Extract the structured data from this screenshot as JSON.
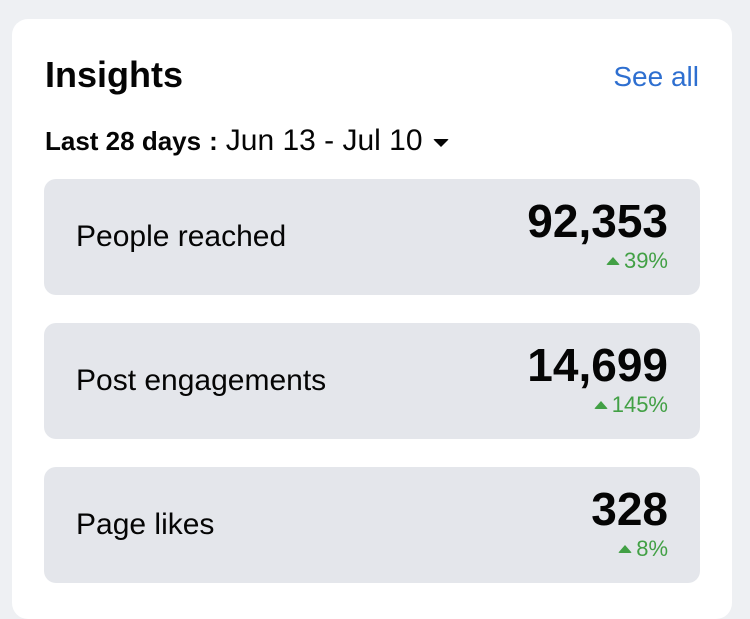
{
  "insights": {
    "title": "Insights",
    "see_all": "See all",
    "range_label": "Last 28 days",
    "range_separator": ":",
    "range_dates": "Jun 13 - Jul 10",
    "dropdown_icon": "caret-down",
    "metrics": [
      {
        "label": "People reached",
        "value": "92,353",
        "change": "39%",
        "trend_icon": "arrow-up"
      },
      {
        "label": "Post engagements",
        "value": "14,699",
        "change": "145%",
        "trend_icon": "arrow-up"
      },
      {
        "label": "Page likes",
        "value": "328",
        "change": "8%",
        "trend_icon": "arrow-up"
      }
    ]
  },
  "colors": {
    "background": "#eef0f3",
    "card": "#ffffff",
    "metric_tile": "#e4e6eb",
    "link": "#2e6fd0",
    "positive": "#42a045",
    "text": "#050505"
  }
}
